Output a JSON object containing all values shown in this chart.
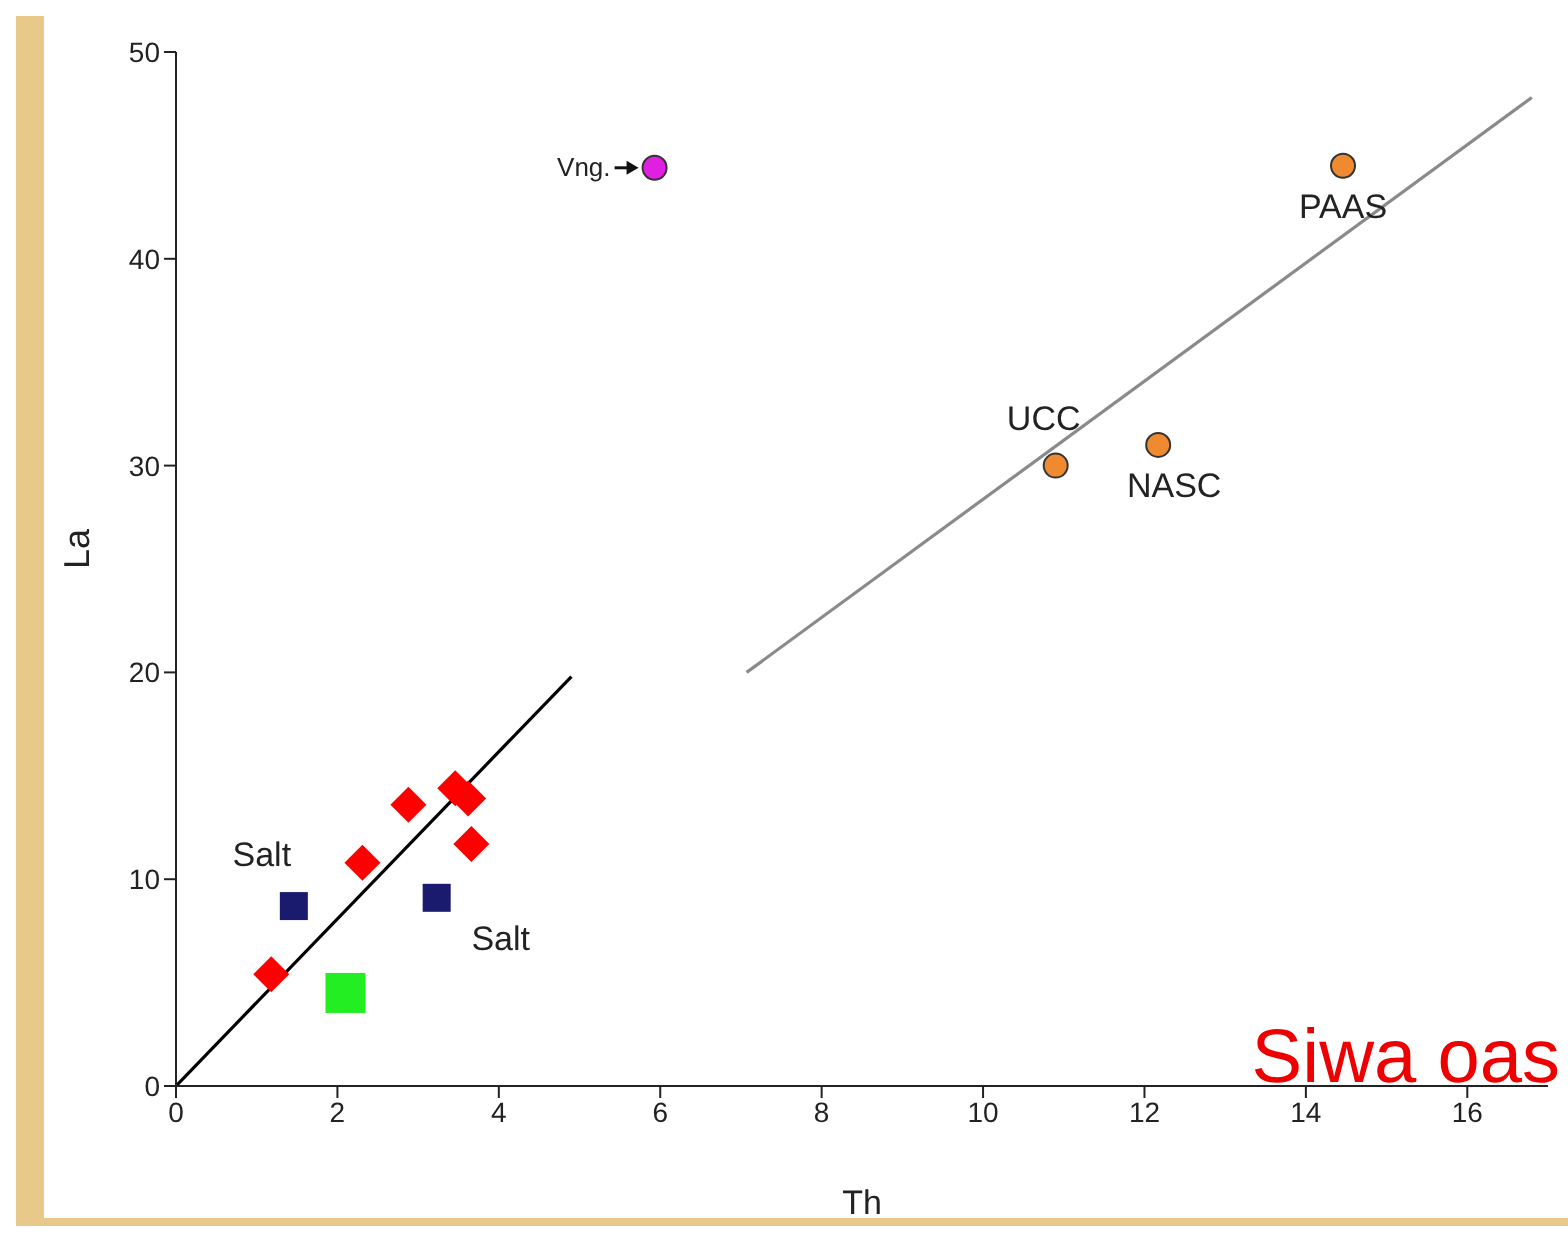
{
  "chart_data": {
    "type": "scatter",
    "xlabel": "Th",
    "ylabel": "La",
    "xlim": [
      0,
      17
    ],
    "xticks": [
      0,
      2,
      4,
      6,
      8,
      10,
      12,
      14,
      16
    ],
    "ylim": [
      0,
      50
    ],
    "yticks": [
      0,
      10,
      20,
      30,
      40,
      50
    ],
    "series": [
      {
        "type": "line",
        "color": "#000000",
        "x": [
          0,
          4.9
        ],
        "values": [
          0,
          19.8
        ],
        "marker": "none",
        "line_style": "solid"
      },
      {
        "type": "line",
        "color": "#8a8a8a",
        "x": [
          7.07,
          16.8
        ],
        "values": [
          20,
          47.8
        ],
        "marker": "none",
        "line_style": "solid"
      },
      {
        "color": "#ff0000",
        "marker": "diamond",
        "x": [
          1.18,
          2.31,
          2.88,
          3.46,
          3.62,
          3.66
        ],
        "values": [
          5.4,
          10.8,
          13.6,
          14.4,
          13.9,
          11.7
        ]
      },
      {
        "color": "#1a1a6e",
        "marker": "square",
        "x": [
          1.46,
          3.23
        ],
        "values": [
          8.7,
          9.1
        ]
      },
      {
        "color": "#22ee22",
        "marker": "square",
        "x": [
          2.1
        ],
        "values": [
          4.5
        ]
      },
      {
        "color": "#e020e0",
        "marker": "circle",
        "x": [
          5.93
        ],
        "values": [
          44.4
        ]
      },
      {
        "color": "#f08a30",
        "marker": "circle",
        "x": [
          14.46,
          10.9,
          12.17
        ],
        "values": [
          44.5,
          30.0,
          31.0
        ]
      }
    ],
    "annotations": [
      {
        "text": "Vng.",
        "x": 5.93,
        "y": 44.4
      },
      {
        "text": "PAAS",
        "x": 14.46,
        "y": 44.5
      },
      {
        "text": "UCC",
        "x": 10.9,
        "y": 30.0
      },
      {
        "text": "NASC",
        "x": 12.17,
        "y": 31.0
      },
      {
        "text": "Salt",
        "x": 1.46,
        "y": 8.7
      },
      {
        "text": "Salt",
        "x": 3.23,
        "y": 9.1
      },
      "Siwa oas"
    ]
  }
}
